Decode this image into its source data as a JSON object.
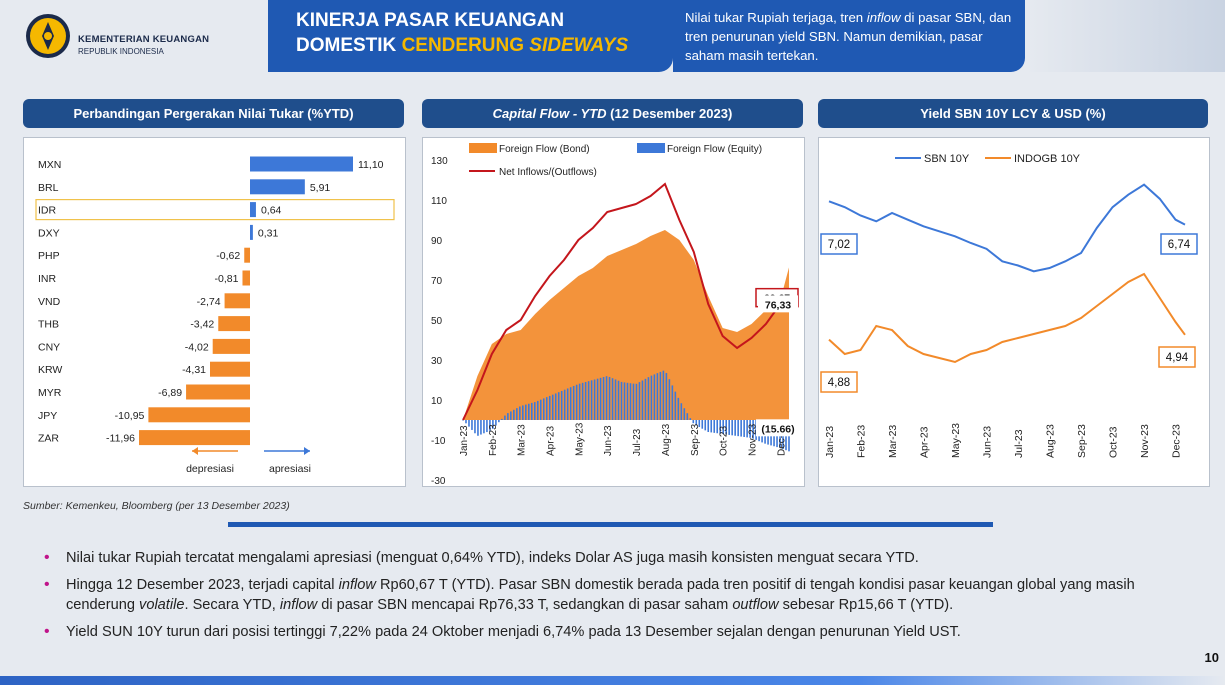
{
  "header": {
    "ministry_name": "KEMENTERIAN KEUANGAN",
    "ministry_sub": "REPUBLIK INDONESIA",
    "title_line1": "KINERJA PASAR KEUANGAN",
    "title_line2_plain": "DOMESTIK ",
    "title_line2_highlight": "CENDERUNG ",
    "title_line2_italic": "SIDEWAYS",
    "summary_pre": "Nilai tukar Rupiah terjaga, tren ",
    "summary_italic": "inflow",
    "summary_post": " di pasar SBN, dan tren penurunan yield SBN. Namun demikian, pasar saham masih tertekan.",
    "title_color": "#1f59b3",
    "accent_color": "#f5b800"
  },
  "panels": {
    "fx": {
      "title": "Perbandingan Pergerakan Nilai Tukar (%YTD)"
    },
    "flow": {
      "title_italic": "Capital Flow - YTD",
      "title_plain": " (12 Desember 2023)"
    },
    "yield": {
      "title": "Yield SBN 10Y LCY & USD (%)"
    }
  },
  "chart_data": [
    {
      "type": "bar",
      "orientation": "horizontal",
      "categories": [
        "MXN",
        "BRL",
        "IDR",
        "DXY",
        "PHP",
        "INR",
        "VND",
        "THB",
        "CNY",
        "KRW",
        "MYR",
        "JPY",
        "ZAR"
      ],
      "values": [
        11.1,
        5.91,
        0.64,
        0.31,
        -0.62,
        -0.81,
        -2.74,
        -3.42,
        -4.02,
        -4.31,
        -6.89,
        -10.95,
        -11.96
      ],
      "value_labels": [
        "11,10",
        "5,91",
        "0,64",
        "0,31",
        "-0,62",
        "-0,81",
        "-2,74",
        "-3,42",
        "-4,02",
        "-4,31",
        "-6,89",
        "-10,95",
        "-11,96"
      ],
      "highlight_category": "IDR",
      "positive_color": "#3d78d8",
      "negative_color": "#f28a2a",
      "legend_left": "depresiasi",
      "legend_right": "apresiasi",
      "xlim": [
        -12.5,
        12.5
      ]
    },
    {
      "type": "area",
      "x_ticks": [
        "Jan-23",
        "Feb-23",
        "Mar-23",
        "Apr-23",
        "May-23",
        "Jun-23",
        "Jul-23",
        "Aug-23",
        "Sep-23",
        "Oct-23",
        "Nov-23",
        "Dec-23"
      ],
      "y_ticks": [
        130,
        110,
        90,
        70,
        50,
        30,
        10,
        -10,
        -30
      ],
      "ylim": [
        -30,
        135
      ],
      "legend": [
        "Foreign Flow (Bond)",
        "Foreign Flow (Equity)",
        "Net Inflows/(Outflows)"
      ],
      "series": [
        {
          "name": "Foreign Flow (Bond)",
          "style": "area",
          "color": "#f28a2a",
          "x": [
            0,
            0.5,
            1,
            1.5,
            2,
            2.5,
            3,
            3.5,
            4,
            4.5,
            5,
            5.5,
            6,
            6.5,
            7,
            7.5,
            8,
            8.5,
            9,
            9.5,
            10,
            10.5,
            11,
            11.3
          ],
          "values": [
            0,
            22,
            38,
            43,
            45,
            53,
            60,
            66,
            72,
            76,
            82,
            85,
            88,
            92,
            95,
            90,
            80,
            62,
            46,
            44,
            48,
            55,
            60,
            76.33
          ]
        },
        {
          "name": "Foreign Flow (Equity)",
          "style": "bars",
          "color": "#3d78d8",
          "x": [
            0,
            0.5,
            1,
            1.5,
            2,
            2.5,
            3,
            3.5,
            4,
            4.5,
            5,
            5.5,
            6,
            6.5,
            7,
            7.5,
            8,
            8.5,
            9,
            9.5,
            10,
            10.5,
            11,
            11.3
          ],
          "values": [
            0,
            -8,
            -5,
            3,
            7,
            9,
            12,
            15,
            18,
            20,
            22,
            19,
            18,
            22,
            25,
            10,
            -2,
            -6,
            -7,
            -8,
            -9,
            -12,
            -14,
            -15.66
          ]
        },
        {
          "name": "Net Inflows/(Outflows)",
          "style": "line",
          "color": "#c4161c",
          "x": [
            0,
            0.5,
            1,
            1.5,
            2,
            2.5,
            3,
            3.5,
            4,
            4.5,
            5,
            5.5,
            6,
            6.5,
            7,
            7.5,
            8,
            8.5,
            9,
            9.5,
            10,
            10.5,
            11,
            11.3
          ],
          "values": [
            0,
            15,
            33,
            45,
            50,
            62,
            72,
            80,
            90,
            96,
            104,
            106,
            108,
            112,
            118,
            100,
            84,
            58,
            42,
            36,
            41,
            48,
            58,
            60.67
          ]
        }
      ],
      "annotations": [
        {
          "label": "60,67",
          "value": 60.67,
          "boxed": true
        },
        {
          "label": "76,33",
          "value": 76.33,
          "boxed": false
        },
        {
          "label": "(15.66)",
          "value": -15.66,
          "boxed": false
        }
      ]
    },
    {
      "type": "line",
      "x_ticks": [
        "Jan-23",
        "Feb-23",
        "Mar-23",
        "Apr-23",
        "May-23",
        "Jun-23",
        "Jul-23",
        "Aug-23",
        "Sep-23",
        "Oct-23",
        "Nov-23",
        "Dec-23"
      ],
      "legend": [
        "SBN 10Y",
        "INDOGB 10Y"
      ],
      "series": [
        {
          "name": "SBN 10Y",
          "color": "#3d78d8",
          "x": [
            0,
            0.5,
            1,
            1.5,
            2,
            2.5,
            3,
            3.5,
            4,
            4.5,
            5,
            5.5,
            6,
            6.5,
            7,
            7.5,
            8,
            8.5,
            9,
            9.5,
            10,
            10.5,
            11,
            11.3
          ],
          "values": [
            7.02,
            6.95,
            6.85,
            6.78,
            6.88,
            6.8,
            6.72,
            6.66,
            6.6,
            6.52,
            6.45,
            6.3,
            6.25,
            6.18,
            6.22,
            6.3,
            6.4,
            6.7,
            6.95,
            7.1,
            7.22,
            7.05,
            6.8,
            6.74
          ]
        },
        {
          "name": "INDOGB 10Y",
          "color": "#f28a2a",
          "x": [
            0,
            0.5,
            1,
            1.5,
            2,
            2.5,
            3,
            3.5,
            4,
            4.5,
            5,
            5.5,
            6,
            6.5,
            7,
            7.5,
            8,
            8.5,
            9,
            9.5,
            10,
            10.5,
            11,
            11.3
          ],
          "values": [
            4.88,
            4.7,
            4.75,
            5.05,
            5.0,
            4.8,
            4.7,
            4.65,
            4.6,
            4.7,
            4.75,
            4.85,
            4.9,
            4.95,
            5.0,
            5.05,
            5.15,
            5.3,
            5.45,
            5.6,
            5.7,
            5.4,
            5.1,
            4.94
          ]
        }
      ],
      "annotations": [
        {
          "label": "7,02",
          "value": 7.02
        },
        {
          "label": "6,74",
          "value": 6.74
        },
        {
          "label": "4,88",
          "value": 4.88
        },
        {
          "label": "4,94",
          "value": 4.94
        }
      ]
    }
  ],
  "source_note": "Sumber: Kemenkeu, Bloomberg (per 13 Desember 2023)",
  "bullets": [
    {
      "parts": [
        "Nilai tukar Rupiah tercatat mengalami apresiasi (menguat 0,64% YTD), indeks Dolar AS juga masih konsisten menguat secara YTD."
      ]
    },
    {
      "p1": "Hingga 12 Desember 2023, terjadi capital ",
      "i1": "inflow",
      "p2": " Rp60,67 T (YTD). Pasar SBN domestik berada pada tren positif di tengah kondisi pasar keuangan global yang masih cenderung ",
      "i2": "volatile",
      "p3": ". Secara YTD, ",
      "i3": "inflow",
      "p4": " di pasar SBN mencapai Rp76,33 T, sedangkan di pasar saham ",
      "i4": "outflow",
      "p5": " sebesar Rp15,66 T (YTD)."
    },
    {
      "parts": [
        "Yield SUN 10Y turun dari posisi tertinggi 7,22% pada 24 Oktober menjadi 6,74% pada 13 Desember sejalan dengan penurunan Yield UST."
      ]
    }
  ],
  "page_number": "10"
}
